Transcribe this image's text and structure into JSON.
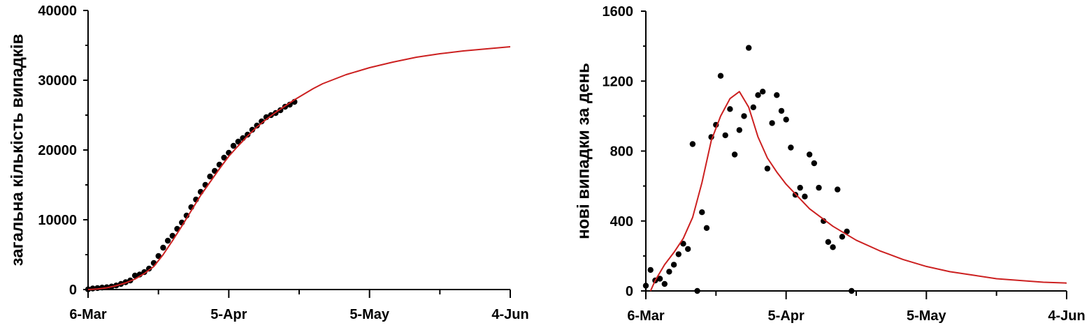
{
  "chart_data": [
    {
      "type": "scatter",
      "title": "",
      "xlabel": "",
      "ylabel": "загальна кількість випадків",
      "xlim": [
        0,
        90
      ],
      "ylim": [
        0,
        40000
      ],
      "x_ticks": [
        {
          "day": 0,
          "label": "6-Mar"
        },
        {
          "day": 30,
          "label": "5-Apr"
        },
        {
          "day": 60,
          "label": "5-May"
        },
        {
          "day": 90,
          "label": "4-Jun"
        }
      ],
      "x_minor_ticks": [
        15,
        45,
        75
      ],
      "y_ticks": [
        0,
        10000,
        20000,
        30000,
        40000
      ],
      "grid": false,
      "series": [
        {
          "kind": "points",
          "color": "#000000",
          "x": [
            0,
            1,
            2,
            3,
            4,
            5,
            6,
            7,
            8,
            9,
            10,
            11,
            12,
            13,
            14,
            15,
            16,
            17,
            18,
            19,
            20,
            21,
            22,
            23,
            24,
            25,
            26,
            27,
            28,
            29,
            30,
            31,
            32,
            33,
            34,
            35,
            36,
            37,
            38,
            39,
            40,
            41,
            42,
            43,
            44
          ],
          "y": [
            30,
            150,
            210,
            280,
            330,
            430,
            580,
            800,
            1050,
            1300,
            2000,
            2150,
            2500,
            3000,
            3800,
            4800,
            6000,
            7000,
            7700,
            8700,
            9600,
            10600,
            11800,
            12900,
            14000,
            15000,
            16200,
            17000,
            17900,
            18900,
            19600,
            20600,
            21200,
            21700,
            22200,
            22900,
            23500,
            24100,
            24700,
            25000,
            25300,
            25700,
            26200,
            26500,
            26900
          ]
        },
        {
          "kind": "line",
          "color": "#cc2020",
          "x": [
            0,
            2,
            4,
            6,
            8,
            10,
            12,
            14,
            16,
            18,
            20,
            22,
            24,
            26,
            28,
            30,
            32,
            34,
            36,
            38,
            40,
            42,
            44,
            46,
            48,
            50,
            55,
            60,
            65,
            70,
            75,
            80,
            85,
            90
          ],
          "y": [
            0,
            80,
            250,
            550,
            950,
            1500,
            2300,
            3300,
            5000,
            7000,
            9100,
            11300,
            13500,
            15400,
            17300,
            19100,
            20600,
            22000,
            23300,
            24400,
            25400,
            26300,
            27200,
            28000,
            28800,
            29500,
            30800,
            31800,
            32600,
            33300,
            33800,
            34200,
            34500,
            34800
          ]
        }
      ]
    },
    {
      "type": "scatter",
      "title": "",
      "xlabel": "",
      "ylabel": "нові випадки за день",
      "xlim": [
        0,
        90
      ],
      "ylim": [
        0,
        1600
      ],
      "x_ticks": [
        {
          "day": 0,
          "label": "6-Mar"
        },
        {
          "day": 30,
          "label": "5-Apr"
        },
        {
          "day": 60,
          "label": "5-May"
        },
        {
          "day": 90,
          "label": "4-Jun"
        }
      ],
      "x_minor_ticks": [
        15,
        45,
        75
      ],
      "y_ticks": [
        0,
        400,
        800,
        1200,
        1600
      ],
      "grid": false,
      "series": [
        {
          "kind": "points",
          "color": "#000000",
          "x": [
            0,
            1,
            2,
            3,
            4,
            5,
            6,
            7,
            8,
            9,
            10,
            11,
            12,
            13,
            14,
            15,
            16,
            17,
            18,
            19,
            20,
            21,
            22,
            23,
            24,
            25,
            26,
            27,
            28,
            29,
            30,
            31,
            32,
            33,
            34,
            35,
            36,
            37,
            38,
            39,
            40,
            41,
            42,
            43,
            44
          ],
          "y": [
            30,
            120,
            60,
            70,
            40,
            110,
            150,
            210,
            270,
            240,
            840,
            0,
            450,
            360,
            880,
            950,
            1230,
            890,
            1040,
            780,
            920,
            1000,
            1390,
            1050,
            1120,
            1140,
            700,
            960,
            1120,
            1030,
            980,
            820,
            550,
            590,
            540,
            780,
            730,
            590,
            400,
            280,
            250,
            580,
            310,
            340,
            0
          ]
        },
        {
          "kind": "line",
          "color": "#cc2020",
          "x": [
            1,
            2,
            4,
            6,
            8,
            10,
            12,
            14,
            16,
            18,
            20,
            22,
            24,
            26,
            28,
            30,
            35,
            40,
            45,
            50,
            55,
            60,
            65,
            70,
            75,
            80,
            85,
            90
          ],
          "y": [
            0,
            60,
            150,
            220,
            300,
            420,
            620,
            860,
            1000,
            1100,
            1140,
            1050,
            880,
            760,
            680,
            610,
            470,
            370,
            290,
            230,
            180,
            140,
            110,
            90,
            70,
            60,
            50,
            45
          ]
        }
      ]
    }
  ]
}
